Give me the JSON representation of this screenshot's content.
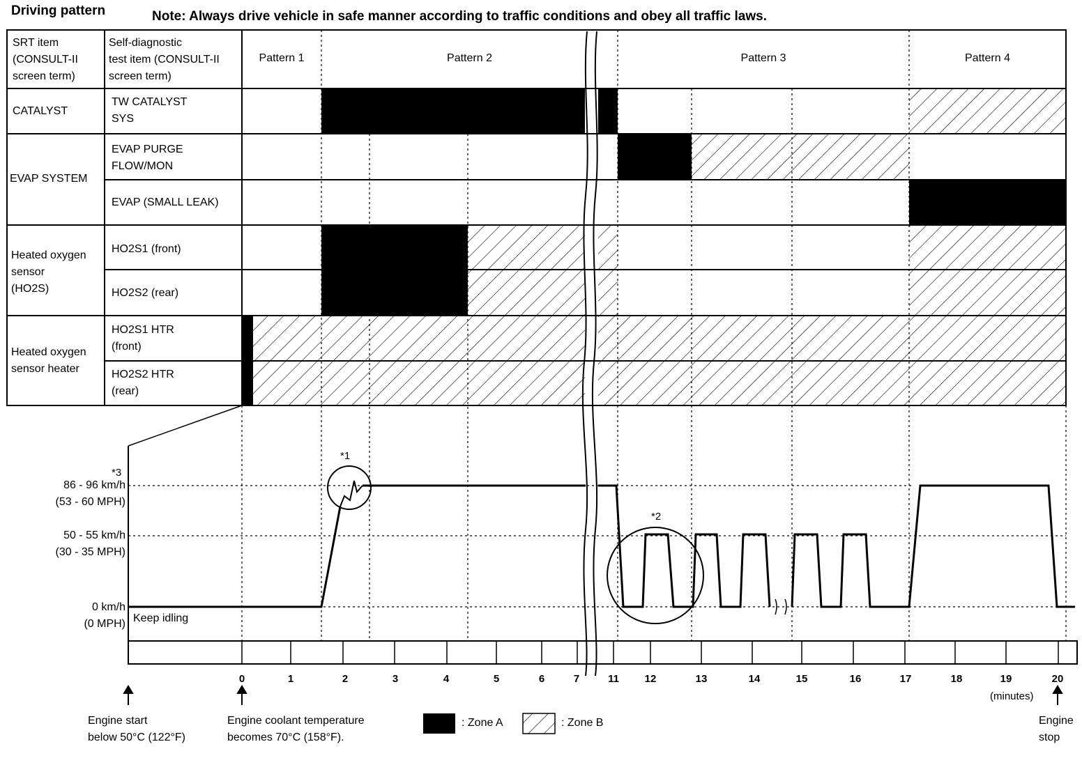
{
  "title": "Driving pattern",
  "note": "Note: Always drive vehicle in safe manner according to traffic conditions and obey all traffic laws.",
  "table": {
    "header": {
      "srt_item": "SRT item\n(CONSULT-II\nscreen term)",
      "test_item": "Self-diagnostic\ntest item (CONSULT-II\nscreen term)",
      "patterns": [
        "Pattern 1",
        "Pattern 2",
        "Pattern 3",
        "Pattern 4"
      ]
    },
    "groups": [
      {
        "srt": "CATALYST",
        "items": [
          "TW CATALYST\nSYS"
        ]
      },
      {
        "srt": "EVAP SYSTEM",
        "items": [
          "EVAP PURGE\nFLOW/MON",
          "EVAP (SMALL LEAK)"
        ]
      },
      {
        "srt": "Heated oxygen\nsensor\n(HO2S)",
        "items": [
          "HO2S1 (front)",
          "HO2S2 (rear)"
        ]
      },
      {
        "srt": "Heated oxygen\nsensor heater",
        "items": [
          "HO2S1 HTR\n(front)",
          "HO2S2 HTR\n(rear)"
        ]
      }
    ]
  },
  "speed_chart": {
    "y_labels": [
      "86 - 96 km/h\n(53 - 60 MPH)",
      "50 - 55 km/h\n(30 - 35 MPH)",
      "0 km/h\n(0 MPH)"
    ],
    "footnote_3": "*3",
    "footnote_1": "*1",
    "footnote_2": "*2",
    "keep_idling": "Keep idling",
    "x_ticks": [
      "0",
      "1",
      "2",
      "3",
      "4",
      "5",
      "6",
      "7",
      "11",
      "12",
      "13",
      "14",
      "15",
      "16",
      "17",
      "18",
      "19",
      "20"
    ],
    "x_unit": "(minutes)"
  },
  "annotations": {
    "engine_start": "Engine start\nbelow 50°C (122°F)",
    "coolant": "Engine coolant temperature\nbecomes 70°C (158°F).",
    "engine_stop": "Engine\nstop"
  },
  "legend": {
    "zone_a": ": Zone A",
    "zone_b": ": Zone B"
  },
  "colors": {
    "zone_a": "#000000",
    "zone_b_hatch": "#000000",
    "background": "#ffffff"
  }
}
